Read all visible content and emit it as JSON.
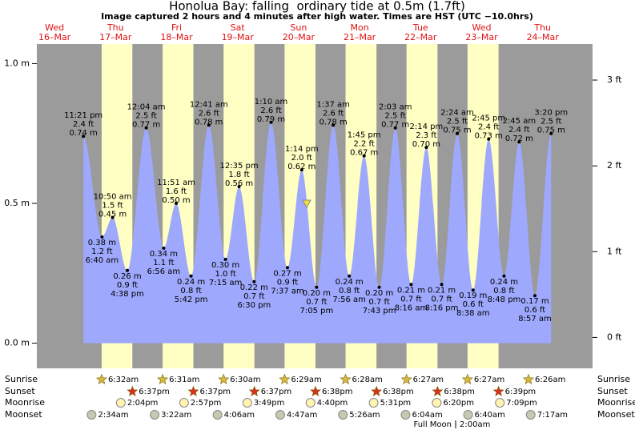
{
  "chart_data": {
    "type": "area",
    "title": "Honolua Bay: falling  ordinary tide at 0.5m (1.7ft)",
    "subtitle": "Image captured 2 hours and 4 minutes after high water. Times are HST (UTC −10.0hrs)",
    "days": [
      {
        "weekday": "Wed",
        "date": "16–Mar"
      },
      {
        "weekday": "Thu",
        "date": "17–Mar"
      },
      {
        "weekday": "Fri",
        "date": "18–Mar"
      },
      {
        "weekday": "Sat",
        "date": "19–Mar"
      },
      {
        "weekday": "Sun",
        "date": "20–Mar"
      },
      {
        "weekday": "Mon",
        "date": "21–Mar"
      },
      {
        "weekday": "Tue",
        "date": "22–Mar"
      },
      {
        "weekday": "Wed",
        "date": "23–Mar"
      },
      {
        "weekday": "Thu",
        "date": "24–Mar"
      }
    ],
    "series": [
      {
        "color": "#9ea8fc",
        "times": [
          "11:21 pm",
          "6:40 am",
          "10:50 am",
          "4:38 pm",
          "12:04 am",
          "6:56 am",
          "11:51 am",
          "5:42 pm",
          "12:41 am",
          "7:15 am",
          "12:35 pm",
          "6:30 pm",
          "1:10 am",
          "7:37 am",
          "1:14 pm",
          "7:05 pm",
          "1:37 am",
          "7:56 am",
          "1:45 pm",
          "7:43 pm",
          "2:03 am",
          "8:16 am",
          "2:14 pm",
          "8:16 pm",
          "2:24 am",
          "8:38 am",
          "2:45 pm",
          "8:48 pm",
          "2:45 am",
          "8:57 am",
          "3:20 pm"
        ],
        "values": [
          0.74,
          0.38,
          0.45,
          0.26,
          0.77,
          0.34,
          0.5,
          0.24,
          0.78,
          0.3,
          0.56,
          0.22,
          0.79,
          0.27,
          0.62,
          0.2,
          0.78,
          0.24,
          0.67,
          0.2,
          0.77,
          0.21,
          0.7,
          0.21,
          0.75,
          0.19,
          0.73,
          0.24,
          0.72,
          0.17,
          0.75
        ],
        "value_labels": [
          "0.74 m",
          "0.38 m",
          "0.45 m",
          "0.26 m",
          "0.77 m",
          "0.34 m",
          "0.50 m",
          "0.24 m",
          "0.78 m",
          "0.30 m",
          "0.56 m",
          "0.22 m",
          "0.79 m",
          "0.27 m",
          "0.62 m",
          "0.20 m",
          "0.78 m",
          "0.24 m",
          "0.67 m",
          "0.20 m",
          "0.77 m",
          "0.21 m",
          "0.70 m",
          "0.21 m",
          "0.75 m",
          "0.19 m",
          "0.73 m",
          "0.24 m",
          "0.72 m",
          "0.17 m",
          "0.75 m"
        ],
        "ft_labels": [
          "2.4 ft",
          "1.2 ft",
          "1.5 ft",
          "0.9 ft",
          "2.5 ft",
          "1.1 ft",
          "1.6 ft",
          "0.8 ft",
          "2.6 ft",
          "1.0 ft",
          "1.8 ft",
          "0.7 ft",
          "2.6 ft",
          "0.9 ft",
          "2.0 ft",
          "0.7 ft",
          "2.6 ft",
          "0.8 ft",
          "2.2 ft",
          "0.7 ft",
          "2.5 ft",
          "0.7 ft",
          "2.3 ft",
          "0.7 ft",
          "2.5 ft",
          "0.6 ft",
          "2.4 ft",
          "0.8 ft",
          "2.4 ft",
          "0.6 ft",
          "2.5 ft"
        ]
      }
    ],
    "ylim": [
      -0.09,
      1.07
    ],
    "yticks": [
      {
        "value": 0.0,
        "label": "0.0 m"
      },
      {
        "value": 0.5,
        "label": "0.5 m"
      },
      {
        "value": 1.0,
        "label": "1.0 m"
      }
    ],
    "y2lim": [
      -0.36,
      3.42
    ],
    "y2ticks": [
      {
        "value": 0,
        "label": "0 ft"
      },
      {
        "value": 1,
        "label": "1 ft"
      },
      {
        "value": 2,
        "label": "2 ft"
      },
      {
        "value": 3,
        "label": "3 ft"
      }
    ],
    "current_level": 0.5,
    "current_color": "#f0e040",
    "night_color": "#9b9b9b",
    "day_color": "#ffffc4",
    "rows": [
      {
        "label": "Sunrise",
        "times": [
          "6:32am",
          "6:31am",
          "6:30am",
          "6:29am",
          "6:28am",
          "6:27am",
          "6:27am",
          "6:26am"
        ]
      },
      {
        "label": "Sunset",
        "times": [
          "6:37pm",
          "6:37pm",
          "6:37pm",
          "6:38pm",
          "6:38pm",
          "6:38pm",
          "6:39pm"
        ]
      },
      {
        "label": "Moonrise",
        "times": [
          "2:04pm",
          "2:57pm",
          "3:49pm",
          "4:40pm",
          "5:31pm",
          "6:20pm",
          "7:09pm"
        ]
      },
      {
        "label": "Moonset",
        "times": [
          "2:34am",
          "3:22am",
          "4:06am",
          "4:47am",
          "5:26am",
          "6:04am",
          "6:40am",
          "7:17am"
        ]
      }
    ],
    "full_moon": {
      "label": "Full Moon",
      "time": "2:00am"
    }
  }
}
